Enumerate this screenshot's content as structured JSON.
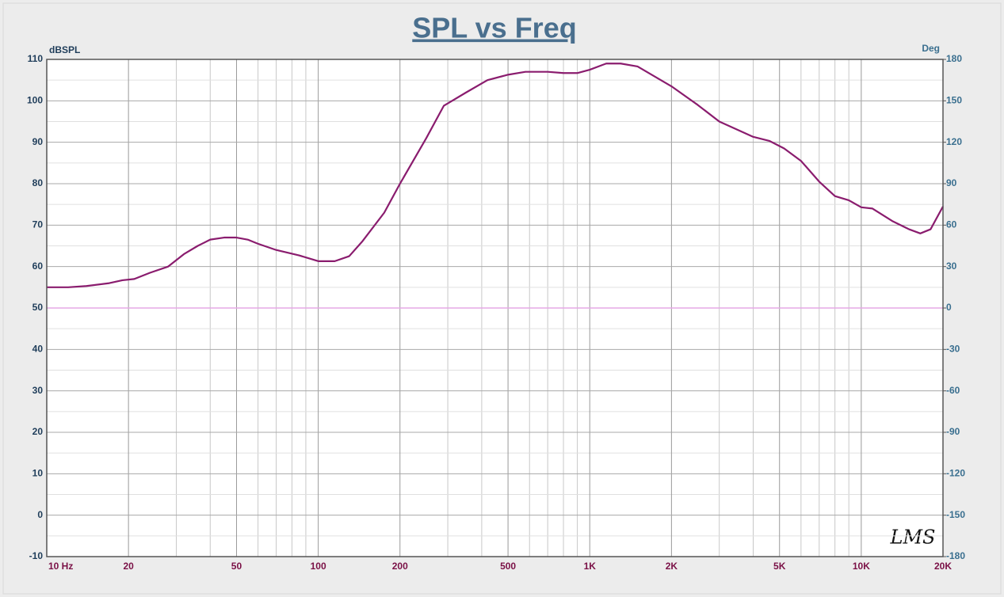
{
  "chart_data": {
    "type": "line",
    "title": "SPL vs Freq",
    "ylabel": "dBSPL",
    "y2label": "Deg",
    "annotation": "LMS",
    "xscale": "log",
    "xlim": [
      10,
      20000
    ],
    "xticks": [
      {
        "value": 10,
        "label": "10 Hz"
      },
      20,
      50,
      100,
      200,
      500,
      {
        "value": 1000,
        "label": "1K"
      },
      {
        "value": 2000,
        "label": "2K"
      },
      {
        "value": 5000,
        "label": "5K"
      },
      {
        "value": 10000,
        "label": "10K"
      },
      {
        "value": 20000,
        "label": "20K"
      }
    ],
    "xminorticks": [
      30,
      40,
      60,
      70,
      80,
      90,
      300,
      400,
      600,
      700,
      800,
      900,
      3000,
      4000,
      6000,
      7000,
      8000,
      9000
    ],
    "ylim": [
      -10,
      110
    ],
    "yticks": [
      -10,
      0,
      10,
      20,
      30,
      40,
      50,
      60,
      70,
      80,
      90,
      100,
      110
    ],
    "yminorticks": [
      -5,
      5,
      15,
      25,
      35,
      45,
      55,
      65,
      75,
      85,
      95,
      105
    ],
    "y2lim": [
      -180,
      180
    ],
    "y2ticks": [
      -180,
      -150,
      -120,
      -90,
      -60,
      -30,
      0,
      30,
      60,
      90,
      120,
      150,
      180
    ],
    "grid": true,
    "series": [
      {
        "color": "#8a1c6e",
        "x": [
          10,
          12,
          14,
          17,
          19,
          21,
          24,
          28,
          32,
          36,
          40,
          45,
          50,
          55,
          60,
          70,
          85,
          100,
          115,
          130,
          145,
          175,
          200,
          250,
          290,
          350,
          420,
          500,
          580,
          700,
          800,
          900,
          1000,
          1150,
          1300,
          1500,
          2000,
          2500,
          3000,
          4000,
          4600,
          5200,
          6000,
          7000,
          8000,
          9000,
          10000,
          11000,
          13000,
          15000,
          16500,
          18000,
          20000
        ],
        "values": [
          55,
          55,
          55.3,
          56,
          56.7,
          57,
          58.5,
          60,
          63,
          65,
          66.5,
          67,
          67,
          66.5,
          65.5,
          64,
          62.7,
          61.3,
          61.3,
          62.5,
          66,
          73,
          80,
          91,
          98.8,
          102,
          105,
          106.3,
          107,
          107,
          106.7,
          106.7,
          107.5,
          109,
          109,
          108.3,
          103.5,
          99,
          95,
          91.3,
          90.3,
          88.5,
          85.5,
          80.5,
          77,
          76,
          74.3,
          74,
          71,
          69,
          68,
          69,
          74.5
        ]
      },
      {
        "color": "#e6a8e6",
        "axis": "y2",
        "x": [
          10,
          20000
        ],
        "values": [
          0,
          0
        ]
      }
    ]
  }
}
